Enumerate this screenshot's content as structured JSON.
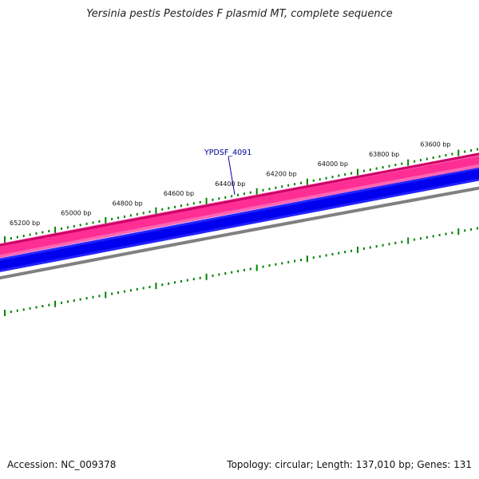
{
  "title": "Yersinia pestis Pestoides F plasmid MT, complete sequence",
  "gene_label": "YPDSF_4091",
  "position_labels": [
    {
      "bp": 65200,
      "text": "65200 bp"
    },
    {
      "bp": 65000,
      "text": "65000 bp"
    },
    {
      "bp": 64800,
      "text": "64800 bp"
    },
    {
      "bp": 64600,
      "text": "64600 bp"
    },
    {
      "bp": 64400,
      "text": "64400 bp"
    },
    {
      "bp": 64200,
      "text": "64200 bp"
    },
    {
      "bp": 64000,
      "text": "64000 bp"
    },
    {
      "bp": 63800,
      "text": "63800 bp"
    },
    {
      "bp": 63600,
      "text": "63600 bp"
    }
  ],
  "footer": {
    "accession": "Accession: NC_009378",
    "topology": "Topology: circular; Length: 137,010 bp; Genes: 131"
  },
  "colors": {
    "forward_strand": "#ff3399",
    "forward_strand_edge": "#cc0066",
    "reverse_strand": "#0000ff",
    "backbone": "#808080",
    "ticks": "#008000",
    "label": "#000099"
  }
}
